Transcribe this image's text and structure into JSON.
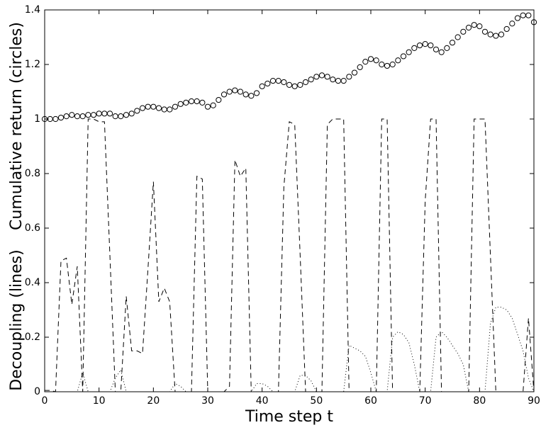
{
  "chart_data": {
    "type": "line",
    "x_label": "Time step t",
    "y_labels": [
      "Cumulative return (circles)",
      "Decoupling (lines)"
    ],
    "x": [
      0,
      1,
      2,
      3,
      4,
      5,
      6,
      7,
      8,
      9,
      10,
      11,
      12,
      13,
      14,
      15,
      16,
      17,
      18,
      19,
      20,
      21,
      22,
      23,
      24,
      25,
      26,
      27,
      28,
      29,
      30,
      31,
      32,
      33,
      34,
      35,
      36,
      37,
      38,
      39,
      40,
      41,
      42,
      43,
      44,
      45,
      46,
      47,
      48,
      49,
      50,
      51,
      52,
      53,
      54,
      55,
      56,
      57,
      58,
      59,
      60,
      61,
      62,
      63,
      64,
      65,
      66,
      67,
      68,
      69,
      70,
      71,
      72,
      73,
      74,
      75,
      76,
      77,
      78,
      79,
      80,
      81,
      82,
      83,
      84,
      85,
      86,
      87,
      88,
      89,
      90
    ],
    "series": [
      {
        "style": "circles",
        "color": "#000000",
        "values": [
          1.0,
          1.0,
          1.0,
          1.005,
          1.01,
          1.015,
          1.01,
          1.01,
          1.015,
          1.015,
          1.02,
          1.02,
          1.02,
          1.01,
          1.01,
          1.015,
          1.02,
          1.03,
          1.04,
          1.045,
          1.045,
          1.04,
          1.035,
          1.035,
          1.045,
          1.055,
          1.06,
          1.065,
          1.065,
          1.06,
          1.045,
          1.05,
          1.07,
          1.09,
          1.1,
          1.105,
          1.1,
          1.09,
          1.085,
          1.095,
          1.12,
          1.13,
          1.14,
          1.14,
          1.135,
          1.125,
          1.12,
          1.125,
          1.135,
          1.145,
          1.155,
          1.16,
          1.155,
          1.145,
          1.14,
          1.14,
          1.155,
          1.17,
          1.19,
          1.21,
          1.22,
          1.215,
          1.2,
          1.195,
          1.2,
          1.215,
          1.23,
          1.245,
          1.26,
          1.27,
          1.275,
          1.27,
          1.255,
          1.245,
          1.26,
          1.28,
          1.3,
          1.32,
          1.335,
          1.345,
          1.34,
          1.32,
          1.31,
          1.305,
          1.31,
          1.33,
          1.35,
          1.37,
          1.38,
          1.38,
          1.355
        ]
      },
      {
        "style": "dashed",
        "color": "#000000",
        "values": [
          0.005,
          0.005,
          0,
          0.48,
          0.49,
          0.32,
          0.46,
          0,
          1,
          1,
          0.99,
          0.99,
          0.5,
          0,
          0,
          0.35,
          0.15,
          0.15,
          0.14,
          0.45,
          0.77,
          0.33,
          0.38,
          0.33,
          0,
          0,
          0,
          0,
          0.79,
          0.78,
          0,
          0,
          0,
          0,
          0.02,
          0.85,
          0.79,
          0.82,
          0,
          0,
          0,
          0,
          0,
          0,
          0.75,
          0.99,
          0.98,
          0.5,
          0,
          0,
          0,
          0,
          0.98,
          1,
          1,
          1,
          0,
          0,
          0,
          0,
          0,
          0,
          1,
          1,
          0,
          0,
          0,
          0,
          0,
          0,
          0.7,
          1,
          1,
          0,
          0,
          0,
          0,
          0,
          0,
          1,
          1,
          1,
          0.5,
          0,
          0,
          0,
          0,
          0,
          0,
          0.27,
          0
        ]
      },
      {
        "style": "dotted",
        "color": "#000000",
        "values": [
          0,
          0,
          0,
          0,
          0,
          0,
          0,
          0.07,
          0,
          0,
          0,
          0,
          0,
          0.05,
          0.08,
          0,
          0,
          0,
          0,
          0,
          0,
          0,
          0,
          0,
          0.03,
          0.02,
          0,
          0,
          0,
          0,
          0,
          0,
          0,
          0,
          0,
          0,
          0,
          0,
          0,
          0.03,
          0.03,
          0.02,
          0,
          0,
          0,
          0,
          0,
          0.06,
          0.06,
          0.04,
          0,
          0,
          0,
          0,
          0,
          0,
          0.17,
          0.16,
          0.15,
          0.13,
          0.07,
          0,
          0,
          0,
          0.2,
          0.22,
          0.21,
          0.18,
          0.1,
          0,
          0,
          0,
          0.2,
          0.22,
          0.2,
          0.17,
          0.14,
          0.1,
          0,
          0,
          0,
          0,
          0.25,
          0.31,
          0.31,
          0.3,
          0.27,
          0.21,
          0.15,
          0.05,
          0
        ]
      }
    ],
    "xlim": [
      0,
      90
    ],
    "ylim": [
      0,
      1.4
    ],
    "xticks": [
      0,
      10,
      20,
      30,
      40,
      50,
      60,
      70,
      80,
      90
    ],
    "yticks": [
      0,
      0.2,
      0.4,
      0.6,
      0.8,
      1,
      1.2,
      1.4
    ]
  }
}
